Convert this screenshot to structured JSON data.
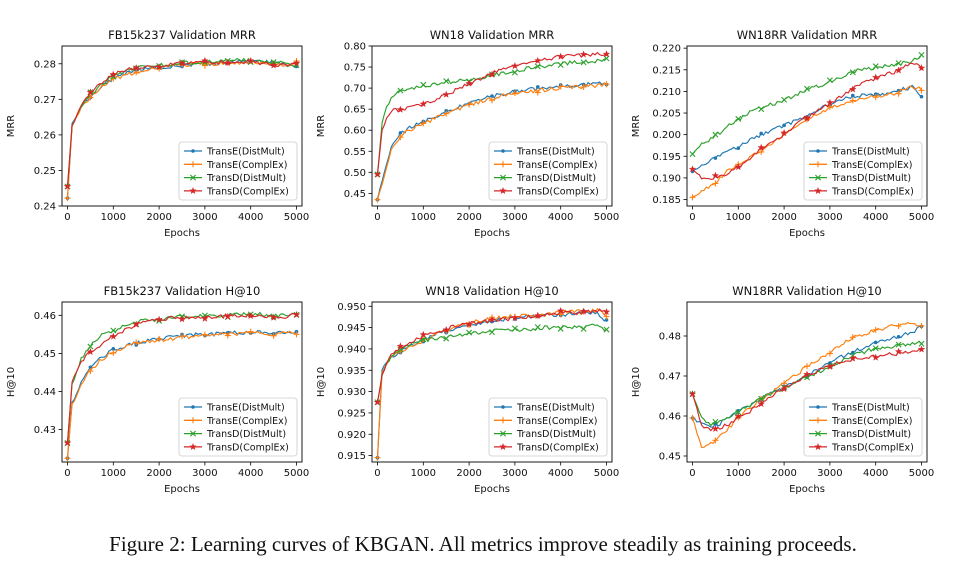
{
  "caption": {
    "prefix": "Figure 2: Learning curves of ",
    "model": "KBGAN",
    "suffix": ". All metrics improve steadily as training proceeds."
  },
  "legend": [
    "TransE(DistMult)",
    "TransE(ComplEx)",
    "TransD(DistMult)",
    "TransD(ComplEx)"
  ],
  "series_colors": [
    "#1f77b4",
    "#ff7f0e",
    "#2ca02c",
    "#d62728"
  ],
  "series_markers": [
    "dot",
    "plus",
    "x",
    "star"
  ],
  "chart_data": [
    {
      "type": "line",
      "title": "FB15k237 Validation MRR",
      "xlabel": "Epochs",
      "ylabel": "MRR",
      "xlim": [
        -120,
        5120
      ],
      "ylim": [
        0.24,
        0.285
      ],
      "xticks": [
        0,
        1000,
        2000,
        3000,
        4000,
        5000
      ],
      "yticks": [
        0.24,
        0.25,
        0.26,
        0.27,
        0.28
      ],
      "ytick_labels": [
        "0.24",
        "0.25",
        "0.26",
        "0.27",
        "0.28"
      ],
      "x": [
        0,
        100,
        200,
        300,
        500,
        700,
        1000,
        1300,
        1600,
        2000,
        2400,
        2800,
        3200,
        3600,
        4000,
        4400,
        4800,
        5000
      ],
      "series": [
        {
          "name": "TransE(DistMult)",
          "values": [
            0.2422,
            0.263,
            0.2655,
            0.268,
            0.271,
            0.273,
            0.276,
            0.2775,
            0.2785,
            0.279,
            0.2795,
            0.28,
            0.28,
            0.2805,
            0.2805,
            0.2805,
            0.2795,
            0.2795
          ]
        },
        {
          "name": "TransE(ComplEx)",
          "values": [
            0.2422,
            0.2625,
            0.265,
            0.2675,
            0.2705,
            0.273,
            0.2755,
            0.277,
            0.278,
            0.279,
            0.2795,
            0.28,
            0.28,
            0.28,
            0.2805,
            0.28,
            0.2795,
            0.2805
          ]
        },
        {
          "name": "TransD(DistMult)",
          "values": [
            0.2455,
            0.2625,
            0.2655,
            0.268,
            0.2715,
            0.2735,
            0.2765,
            0.278,
            0.279,
            0.2795,
            0.28,
            0.2805,
            0.2805,
            0.281,
            0.281,
            0.2805,
            0.28,
            0.2795
          ]
        },
        {
          "name": "TransD(ComplEx)",
          "values": [
            0.2455,
            0.2625,
            0.2655,
            0.2685,
            0.272,
            0.2745,
            0.277,
            0.2785,
            0.279,
            0.2795,
            0.28,
            0.2805,
            0.2805,
            0.2805,
            0.2805,
            0.28,
            0.2795,
            0.2805
          ]
        }
      ],
      "legend_loc": "lower-right"
    },
    {
      "type": "line",
      "title": "WN18 Validation MRR",
      "xlabel": "Epochs",
      "ylabel": "MRR",
      "xlim": [
        -120,
        5120
      ],
      "ylim": [
        0.42,
        0.8
      ],
      "xticks": [
        0,
        1000,
        2000,
        3000,
        4000,
        5000
      ],
      "yticks": [
        0.45,
        0.5,
        0.55,
        0.6,
        0.65,
        0.7,
        0.75,
        0.8
      ],
      "ytick_labels": [
        "0.45",
        "0.50",
        "0.55",
        "0.60",
        "0.65",
        "0.70",
        "0.75",
        "0.80"
      ],
      "x": [
        0,
        100,
        200,
        300,
        500,
        700,
        1000,
        1300,
        1600,
        2000,
        2400,
        2800,
        3200,
        3600,
        4000,
        4400,
        4800,
        5000
      ],
      "series": [
        {
          "name": "TransE(DistMult)",
          "values": [
            0.435,
            0.48,
            0.52,
            0.56,
            0.59,
            0.605,
            0.62,
            0.635,
            0.648,
            0.665,
            0.677,
            0.688,
            0.695,
            0.7,
            0.705,
            0.707,
            0.71,
            0.712
          ]
        },
        {
          "name": "TransE(ComplEx)",
          "values": [
            0.435,
            0.47,
            0.51,
            0.55,
            0.585,
            0.6,
            0.615,
            0.63,
            0.643,
            0.66,
            0.672,
            0.683,
            0.69,
            0.695,
            0.7,
            0.703,
            0.706,
            0.708
          ]
        },
        {
          "name": "TransD(DistMult)",
          "values": [
            0.495,
            0.62,
            0.655,
            0.675,
            0.695,
            0.7,
            0.705,
            0.71,
            0.715,
            0.72,
            0.728,
            0.737,
            0.745,
            0.752,
            0.758,
            0.762,
            0.765,
            0.768
          ]
        },
        {
          "name": "TransD(ComplEx)",
          "values": [
            0.495,
            0.6,
            0.63,
            0.645,
            0.65,
            0.655,
            0.66,
            0.675,
            0.69,
            0.71,
            0.73,
            0.748,
            0.76,
            0.768,
            0.775,
            0.778,
            0.78,
            0.78
          ]
        }
      ],
      "legend_loc": "lower-right"
    },
    {
      "type": "line",
      "title": "WN18RR Validation MRR",
      "xlabel": "Epochs",
      "ylabel": "MRR",
      "xlim": [
        -120,
        5120
      ],
      "ylim": [
        0.1835,
        0.2205
      ],
      "xticks": [
        0,
        1000,
        2000,
        3000,
        4000,
        5000
      ],
      "yticks": [
        0.185,
        0.19,
        0.195,
        0.2,
        0.205,
        0.21,
        0.215,
        0.22
      ],
      "ytick_labels": [
        "0.185",
        "0.190",
        "0.195",
        "0.200",
        "0.205",
        "0.210",
        "0.215",
        "0.220"
      ],
      "x": [
        0,
        200,
        400,
        600,
        800,
        1000,
        1300,
        1600,
        2000,
        2400,
        2800,
        3200,
        3600,
        4000,
        4400,
        4800,
        5000
      ],
      "series": [
        {
          "name": "TransE(DistMult)",
          "values": [
            0.1915,
            0.193,
            0.194,
            0.195,
            0.1965,
            0.197,
            0.199,
            0.2005,
            0.202,
            0.204,
            0.206,
            0.208,
            0.209,
            0.209,
            0.21,
            0.211,
            0.2085
          ]
        },
        {
          "name": "TransE(ComplEx)",
          "values": [
            0.1855,
            0.187,
            0.188,
            0.19,
            0.192,
            0.193,
            0.195,
            0.197,
            0.2,
            0.203,
            0.205,
            0.207,
            0.208,
            0.209,
            0.2095,
            0.211,
            0.2105
          ]
        },
        {
          "name": "TransD(DistMult)",
          "values": [
            0.1955,
            0.198,
            0.199,
            0.2005,
            0.2025,
            0.2035,
            0.2055,
            0.2065,
            0.208,
            0.21,
            0.2115,
            0.213,
            0.215,
            0.2155,
            0.216,
            0.217,
            0.218
          ]
        },
        {
          "name": "TransD(ComplEx)",
          "values": [
            0.192,
            0.19,
            0.19,
            0.1905,
            0.191,
            0.1925,
            0.195,
            0.1975,
            0.2,
            0.2035,
            0.206,
            0.2085,
            0.2115,
            0.213,
            0.2145,
            0.2165,
            0.2155
          ]
        }
      ],
      "legend_loc": "lower-right"
    },
    {
      "type": "line",
      "title": "FB15k237 Validation H@10",
      "xlabel": "Epochs",
      "ylabel": "H@10",
      "xlim": [
        -120,
        5120
      ],
      "ylim": [
        0.4215,
        0.4635
      ],
      "xticks": [
        0,
        1000,
        2000,
        3000,
        4000,
        5000
      ],
      "yticks": [
        0.43,
        0.44,
        0.45,
        0.46
      ],
      "ytick_labels": [
        "0.43",
        "0.44",
        "0.45",
        "0.46"
      ],
      "x": [
        0,
        100,
        200,
        300,
        500,
        700,
        1000,
        1300,
        1600,
        2000,
        2400,
        2800,
        3200,
        3600,
        4000,
        4400,
        4800,
        5000
      ],
      "series": [
        {
          "name": "TransE(DistMult)",
          "values": [
            0.4225,
            0.437,
            0.4395,
            0.4425,
            0.446,
            0.4485,
            0.451,
            0.452,
            0.453,
            0.454,
            0.4545,
            0.455,
            0.455,
            0.4555,
            0.4555,
            0.4555,
            0.4555,
            0.4555
          ]
        },
        {
          "name": "TransE(ComplEx)",
          "values": [
            0.4225,
            0.4365,
            0.439,
            0.442,
            0.4455,
            0.448,
            0.4505,
            0.452,
            0.453,
            0.4535,
            0.454,
            0.4545,
            0.455,
            0.455,
            0.4555,
            0.455,
            0.4555,
            0.4555
          ]
        },
        {
          "name": "TransD(DistMult)",
          "values": [
            0.4265,
            0.442,
            0.445,
            0.4485,
            0.452,
            0.4545,
            0.456,
            0.4575,
            0.4585,
            0.459,
            0.4595,
            0.46,
            0.46,
            0.46,
            0.4605,
            0.46,
            0.46,
            0.4605
          ]
        },
        {
          "name": "TransD(ComplEx)",
          "values": [
            0.4265,
            0.4425,
            0.4455,
            0.448,
            0.4505,
            0.452,
            0.4545,
            0.4565,
            0.458,
            0.459,
            0.4595,
            0.4595,
            0.4595,
            0.46,
            0.46,
            0.4595,
            0.4595,
            0.4605
          ]
        }
      ],
      "legend_loc": "lower-right"
    },
    {
      "type": "line",
      "title": "WN18 Validation H@10",
      "xlabel": "Epochs",
      "ylabel": "H@10",
      "xlim": [
        -120,
        5120
      ],
      "ylim": [
        0.9135,
        0.951
      ],
      "xticks": [
        0,
        1000,
        2000,
        3000,
        4000,
        5000
      ],
      "yticks": [
        0.915,
        0.92,
        0.925,
        0.93,
        0.935,
        0.94,
        0.945,
        0.95
      ],
      "ytick_labels": [
        "0.915",
        "0.920",
        "0.925",
        "0.930",
        "0.935",
        "0.940",
        "0.945",
        "0.950"
      ],
      "x": [
        0,
        100,
        200,
        300,
        500,
        700,
        1000,
        1300,
        1600,
        2000,
        2400,
        2800,
        3200,
        3600,
        4000,
        4400,
        4800,
        5000
      ],
      "series": [
        {
          "name": "TransE(DistMult)",
          "values": [
            0.9145,
            0.935,
            0.937,
            0.938,
            0.9395,
            0.9405,
            0.942,
            0.9435,
            0.9445,
            0.9455,
            0.9465,
            0.947,
            0.9475,
            0.948,
            0.948,
            0.9485,
            0.9485,
            0.9465
          ]
        },
        {
          "name": "TransE(ComplEx)",
          "values": [
            0.9145,
            0.9345,
            0.9365,
            0.938,
            0.9395,
            0.9405,
            0.942,
            0.9435,
            0.945,
            0.946,
            0.947,
            0.9475,
            0.948,
            0.948,
            0.9485,
            0.949,
            0.949,
            0.948
          ]
        },
        {
          "name": "TransD(DistMult)",
          "values": [
            0.9275,
            0.934,
            0.9365,
            0.938,
            0.94,
            0.941,
            0.942,
            0.9425,
            0.943,
            0.9435,
            0.944,
            0.9445,
            0.9445,
            0.945,
            0.945,
            0.945,
            0.9455,
            0.9445
          ]
        },
        {
          "name": "TransD(ComplEx)",
          "values": [
            0.9275,
            0.934,
            0.9365,
            0.9385,
            0.9405,
            0.9415,
            0.943,
            0.944,
            0.945,
            0.946,
            0.9465,
            0.947,
            0.9475,
            0.948,
            0.9485,
            0.9485,
            0.949,
            0.9485
          ]
        }
      ],
      "legend_loc": "lower-right"
    },
    {
      "type": "line",
      "title": "WN18RR Validation H@10",
      "xlabel": "Epochs",
      "ylabel": "H@10",
      "xlim": [
        -120,
        5120
      ],
      "ylim": [
        0.4485,
        0.4885
      ],
      "xticks": [
        0,
        1000,
        2000,
        3000,
        4000,
        5000
      ],
      "yticks": [
        0.45,
        0.46,
        0.47,
        0.48
      ],
      "ytick_labels": [
        "0.45",
        "0.46",
        "0.47",
        "0.48"
      ],
      "x": [
        0,
        200,
        400,
        600,
        800,
        1000,
        1300,
        1600,
        2000,
        2400,
        2800,
        3200,
        3600,
        4000,
        4400,
        4800,
        5000
      ],
      "series": [
        {
          "name": "TransE(DistMult)",
          "values": [
            0.4595,
            0.458,
            0.4575,
            0.458,
            0.46,
            0.461,
            0.463,
            0.465,
            0.467,
            0.4695,
            0.472,
            0.4745,
            0.4765,
            0.4785,
            0.4795,
            0.481,
            0.4825
          ]
        },
        {
          "name": "TransE(ComplEx)",
          "values": [
            0.4595,
            0.452,
            0.453,
            0.455,
            0.457,
            0.4595,
            0.4625,
            0.465,
            0.468,
            0.4715,
            0.4745,
            0.4775,
            0.48,
            0.4815,
            0.4825,
            0.4835,
            0.4825
          ]
        },
        {
          "name": "TransD(DistMult)",
          "values": [
            0.4655,
            0.4595,
            0.458,
            0.4585,
            0.46,
            0.461,
            0.463,
            0.465,
            0.467,
            0.469,
            0.471,
            0.4735,
            0.4755,
            0.477,
            0.4775,
            0.478,
            0.4785
          ]
        },
        {
          "name": "TransD(ComplEx)",
          "values": [
            0.4655,
            0.4575,
            0.4565,
            0.457,
            0.458,
            0.4595,
            0.4615,
            0.464,
            0.467,
            0.4695,
            0.4715,
            0.4735,
            0.4745,
            0.475,
            0.4755,
            0.476,
            0.477
          ]
        }
      ],
      "legend_loc": "lower-right"
    }
  ]
}
